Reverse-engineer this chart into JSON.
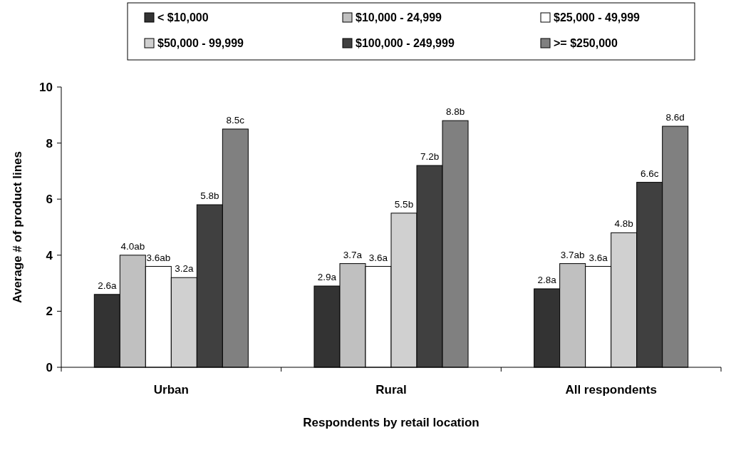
{
  "chart_data": {
    "type": "bar",
    "xlabel": "Respondents by retail location",
    "ylabel": "Average # of product lines",
    "categories": [
      "Urban",
      "Rural",
      "All respondents"
    ],
    "series": [
      {
        "name": "< $10,000",
        "color": "#333333",
        "values": [
          2.6,
          2.9,
          2.8
        ],
        "value_labels": [
          "2.6a",
          "2.9a",
          "2.8a"
        ]
      },
      {
        "name": "$10,000 - 24,999",
        "color": "#c0c0c0",
        "values": [
          4.0,
          3.7,
          3.7
        ],
        "value_labels": [
          "4.0ab",
          "3.7a",
          "3.7ab"
        ]
      },
      {
        "name": "$25,000 - 49,999",
        "color": "#ffffff",
        "values": [
          3.6,
          3.6,
          3.6
        ],
        "value_labels": [
          "3.6ab",
          "3.6a",
          "3.6a"
        ]
      },
      {
        "name": "$50,000 - 99,999",
        "color": "#d0d0d0",
        "values": [
          3.2,
          5.5,
          4.8
        ],
        "value_labels": [
          "3.2a",
          "5.5b",
          "4.8b"
        ]
      },
      {
        "name": "$100,000 - 249,999",
        "color": "#404040",
        "values": [
          5.8,
          7.2,
          6.6
        ],
        "value_labels": [
          "5.8b",
          "7.2b",
          "6.6c"
        ]
      },
      {
        "name": ">= $250,000",
        "color": "#808080",
        "values": [
          8.5,
          8.8,
          8.6
        ],
        "value_labels": [
          "8.5c",
          "8.8b",
          "8.6d"
        ]
      }
    ],
    "ylim": [
      0,
      10
    ],
    "yticks": [
      0,
      2,
      4,
      6,
      8,
      10
    ],
    "grid": false,
    "legend": "top"
  }
}
